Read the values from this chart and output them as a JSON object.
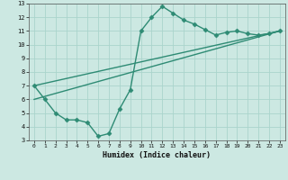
{
  "line1_x": [
    0,
    1,
    2,
    3,
    4,
    5,
    6,
    7,
    8,
    9,
    10,
    11,
    12,
    13,
    14,
    15,
    16,
    17,
    18,
    19,
    20,
    21,
    22,
    23
  ],
  "line1_y": [
    7.0,
    6.0,
    5.0,
    4.5,
    4.5,
    4.3,
    3.3,
    3.5,
    5.3,
    6.7,
    11.0,
    12.0,
    12.8,
    12.3,
    11.8,
    11.5,
    11.1,
    10.7,
    10.9,
    11.0,
    10.8,
    10.7,
    10.8,
    11.0
  ],
  "line2_x": [
    0,
    23
  ],
  "line2_y": [
    7.0,
    11.0
  ],
  "line3_x": [
    0,
    23
  ],
  "line3_y": [
    6.0,
    11.0
  ],
  "color": "#2e8b74",
  "bg_color": "#cce8e2",
  "grid_color": "#aad4cc",
  "xlabel": "Humidex (Indice chaleur)",
  "xlim": [
    -0.5,
    23.5
  ],
  "ylim": [
    3,
    13
  ],
  "xticks": [
    0,
    1,
    2,
    3,
    4,
    5,
    6,
    7,
    8,
    9,
    10,
    11,
    12,
    13,
    14,
    15,
    16,
    17,
    18,
    19,
    20,
    21,
    22,
    23
  ],
  "yticks": [
    3,
    4,
    5,
    6,
    7,
    8,
    9,
    10,
    11,
    12,
    13
  ],
  "marker": "D",
  "markersize": 2.5,
  "linewidth": 1.0
}
